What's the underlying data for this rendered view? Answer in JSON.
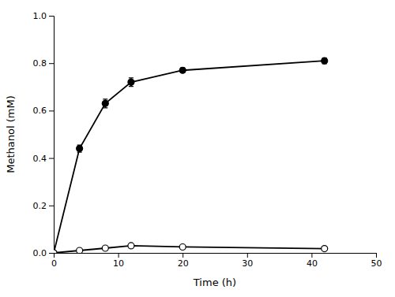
{
  "chart_data": {
    "type": "line",
    "xlabel": "Time (h)",
    "ylabel": "Methanol (mM)",
    "x": [
      0,
      4,
      8,
      12,
      20,
      42
    ],
    "series": [
      {
        "color": "#000000",
        "marker": "circle",
        "line_style": "solid",
        "values": [
          0.0,
          0.44,
          0.63,
          0.72,
          0.77,
          0.81
        ],
        "errors": [
          0.0,
          0.015,
          0.018,
          0.018,
          0.01,
          0.012
        ]
      },
      {
        "color": "#000000",
        "marker": "open-circle",
        "line_style": "solid",
        "values": [
          0.0,
          0.01,
          0.02,
          0.03,
          0.025,
          0.018
        ],
        "errors": [
          0.0,
          0.002,
          0.002,
          0.003,
          0.002,
          0.002
        ]
      }
    ],
    "xlim": [
      0,
      50
    ],
    "ylim": [
      0,
      1
    ],
    "xticks": [
      0,
      10,
      20,
      30,
      40,
      50
    ],
    "yticks": [
      {
        "value": 0,
        "label": "0.0"
      },
      0.2,
      0.4,
      0.6,
      0.8,
      {
        "value": 1,
        "label": "1.0"
      }
    ]
  }
}
